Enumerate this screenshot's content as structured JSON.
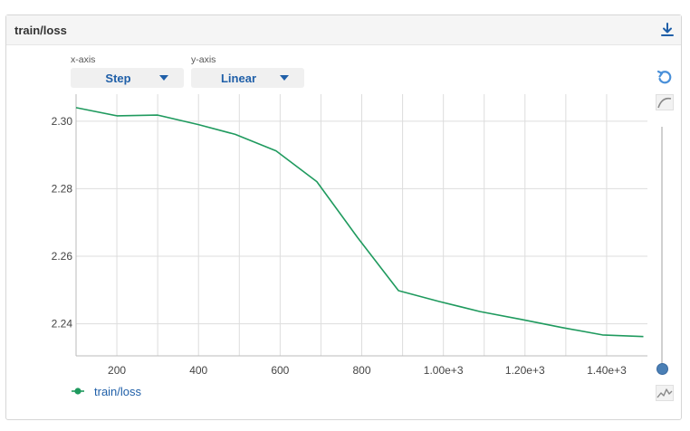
{
  "header": {
    "title": "train/loss",
    "download_icon": "download-icon"
  },
  "controls": {
    "xaxis_label": "x-axis",
    "xaxis_value": "Step",
    "yaxis_label": "y-axis",
    "yaxis_value": "Linear"
  },
  "side_controls": {
    "reset_icon": "reset-icon",
    "smoothing_icon": "smoothing-curve-icon",
    "raw_icon": "raw-data-icon"
  },
  "colors": {
    "series": "#1f9a5e",
    "accent": "#1f5fa8",
    "grid": "#dddddd"
  },
  "chart_data": {
    "type": "line",
    "x": [
      100,
      200,
      300,
      400,
      490,
      590,
      690,
      790,
      890,
      990,
      1090,
      1190,
      1290,
      1390,
      1490
    ],
    "series": [
      {
        "name": "train/loss",
        "values": [
          2.304,
          2.3016,
          2.3018,
          2.299,
          2.2961,
          2.2912,
          2.2821,
          2.2655,
          2.2498,
          2.2466,
          2.2436,
          2.2413,
          2.2389,
          2.2367,
          2.2362
        ]
      }
    ],
    "xlim": [
      100,
      1500
    ],
    "ylim": [
      2.2305,
      2.308
    ],
    "x_ticks": [
      200,
      400,
      600,
      800,
      1000,
      1200,
      1400
    ],
    "x_tick_labels": [
      "200",
      "400",
      "600",
      "800",
      "1.00e+3",
      "1.20e+3",
      "1.40e+3"
    ],
    "x_minor_ticks": [
      300,
      500,
      700,
      900,
      1100,
      1300
    ],
    "y_ticks": [
      2.24,
      2.26,
      2.28,
      2.3
    ],
    "y_tick_labels": [
      "2.24",
      "2.26",
      "2.28",
      "2.30"
    ],
    "grid": true,
    "legend": "bottom-left",
    "smoothing_level": 1.0
  }
}
